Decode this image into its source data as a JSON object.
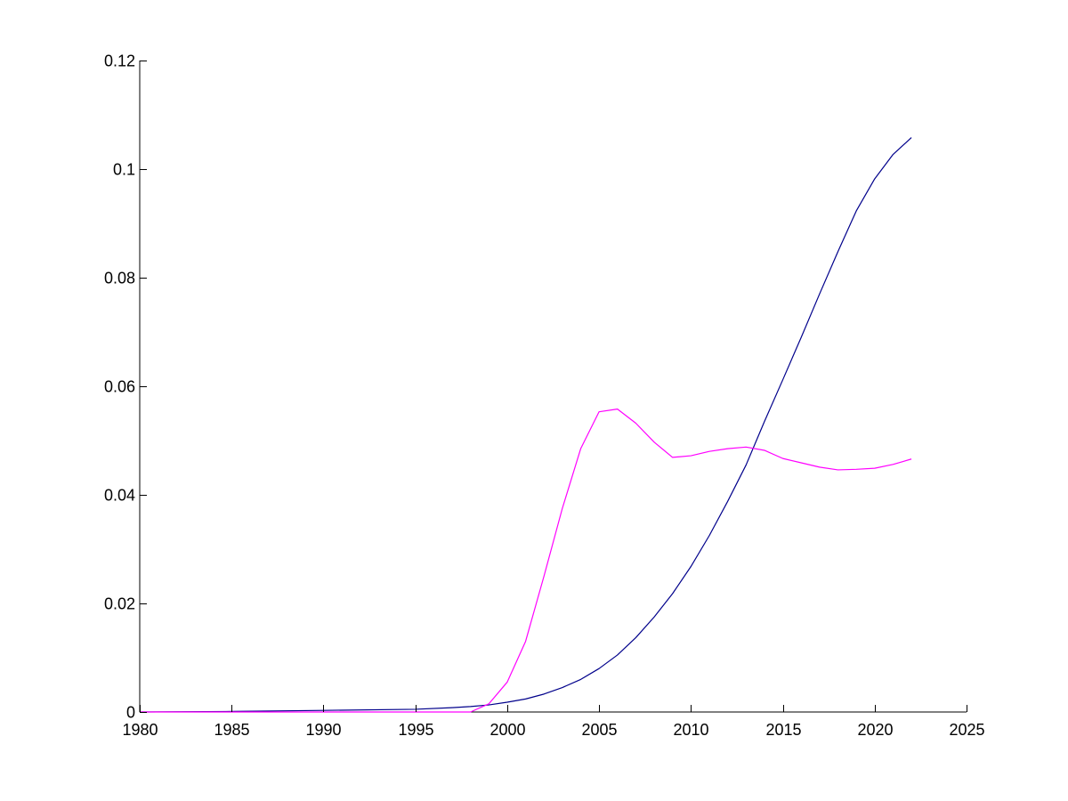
{
  "chart_data": {
    "type": "line",
    "title": "",
    "xlabel": "",
    "ylabel": "",
    "xlim": [
      1980,
      2025
    ],
    "ylim": [
      0,
      0.12
    ],
    "x_ticks": [
      1980,
      1985,
      1990,
      1995,
      2000,
      2005,
      2010,
      2015,
      2020,
      2025
    ],
    "x_tick_labels": [
      "1980",
      "1985",
      "1990",
      "1995",
      "2000",
      "2005",
      "2010",
      "2015",
      "2020",
      "2025"
    ],
    "y_ticks": [
      0,
      0.02,
      0.04,
      0.06,
      0.08,
      0.1,
      0.12
    ],
    "y_tick_labels": [
      "0",
      "0.02",
      "0.04",
      "0.06",
      "0.08",
      "0.1",
      "0.12"
    ],
    "grid": false,
    "legend": "none",
    "series": [
      {
        "color": "#00008b",
        "x": [
          1980,
          1985,
          1990,
          1995,
          1997,
          1998,
          1999,
          2000,
          2001,
          2002,
          2003,
          2004,
          2005,
          2006,
          2007,
          2008,
          2009,
          2010,
          2011,
          2012,
          2013,
          2014,
          2015,
          2016,
          2017,
          2018,
          2019,
          2020,
          2021,
          2022
        ],
        "values": [
          0,
          0.0001,
          0.0003,
          0.0005,
          0.0008,
          0.001,
          0.0013,
          0.0018,
          0.0024,
          0.0033,
          0.0045,
          0.006,
          0.008,
          0.0105,
          0.0137,
          0.0175,
          0.0218,
          0.0268,
          0.0325,
          0.0388,
          0.0455,
          0.0535,
          0.0612,
          0.069,
          0.077,
          0.0848,
          0.0923,
          0.0982,
          0.1027,
          0.1058
        ]
      },
      {
        "color": "#ff00ff",
        "x": [
          1980,
          1985,
          1990,
          1995,
          1998,
          1999,
          2000,
          2001,
          2002,
          2003,
          2004,
          2005,
          2006,
          2007,
          2008,
          2009,
          2010,
          2011,
          2012,
          2013,
          2014,
          2015,
          2016,
          2017,
          2018,
          2019,
          2020,
          2021,
          2022
        ],
        "values": [
          0,
          0,
          0,
          0,
          0,
          0.0015,
          0.0055,
          0.013,
          0.025,
          0.0375,
          0.0485,
          0.0553,
          0.0558,
          0.0532,
          0.0497,
          0.0469,
          0.0472,
          0.048,
          0.0485,
          0.0488,
          0.0482,
          0.0467,
          0.0459,
          0.0451,
          0.0446,
          0.0447,
          0.0449,
          0.0456,
          0.0466
        ]
      }
    ]
  }
}
